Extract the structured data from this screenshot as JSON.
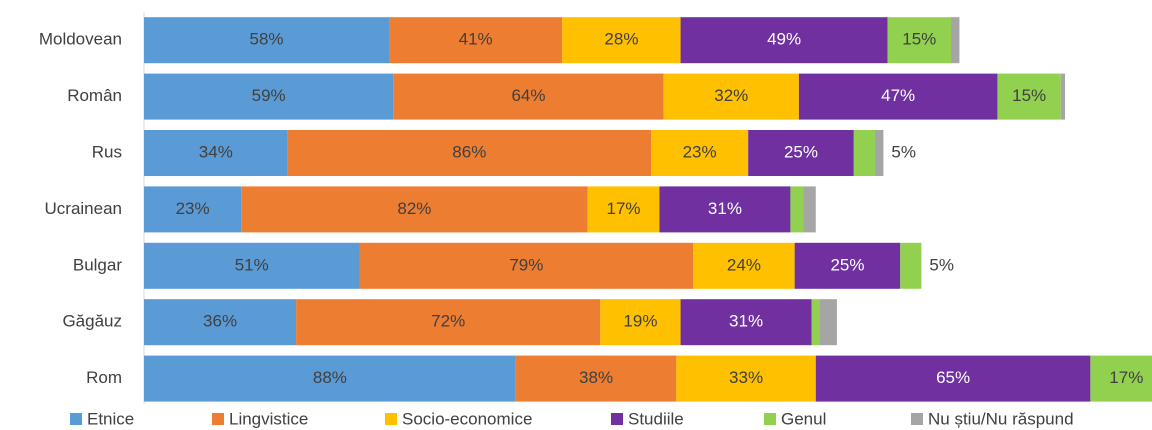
{
  "chart_data": {
    "type": "stacked-bar-horizontal",
    "categories": [
      "Moldovean",
      "Român",
      "Rus",
      "Ucrainean",
      "Bulgar",
      "Găgăuz",
      "Rom"
    ],
    "series": [
      {
        "name": "Etnice",
        "color": "#5b9bd5",
        "values": [
          58,
          59,
          34,
          23,
          51,
          36,
          88
        ],
        "value_labels": [
          "58%",
          "59%",
          "34%",
          "23%",
          "51%",
          "36%",
          "88%"
        ]
      },
      {
        "name": "Lingvistice",
        "color": "#ed7d31",
        "values": [
          41,
          64,
          86,
          82,
          79,
          72,
          38
        ],
        "value_labels": [
          "41%",
          "64%",
          "86%",
          "82%",
          "79%",
          "72%",
          "38%"
        ]
      },
      {
        "name": "Socio-economice",
        "color": "#ffc000",
        "values": [
          28,
          32,
          23,
          17,
          24,
          19,
          33
        ],
        "value_labels": [
          "28%",
          "32%",
          "23%",
          "17%",
          "24%",
          "19%",
          "33%"
        ]
      },
      {
        "name": "Studiile",
        "color": "#7030a0",
        "values": [
          49,
          47,
          25,
          31,
          25,
          31,
          65
        ],
        "value_labels": [
          "49%",
          "47%",
          "25%",
          "31%",
          "25%",
          "31%",
          "65%"
        ]
      },
      {
        "name": "Genul",
        "color": "#92d050",
        "values": [
          15,
          15,
          5,
          3,
          5,
          2,
          17
        ],
        "value_labels": [
          "15%",
          "15%",
          "5%",
          null,
          "5%",
          null,
          "17%"
        ]
      },
      {
        "name": "Nu știu/Nu răspund",
        "color": "#a5a5a5",
        "values": [
          2,
          1,
          2,
          3,
          null,
          4,
          null
        ]
      }
    ]
  }
}
